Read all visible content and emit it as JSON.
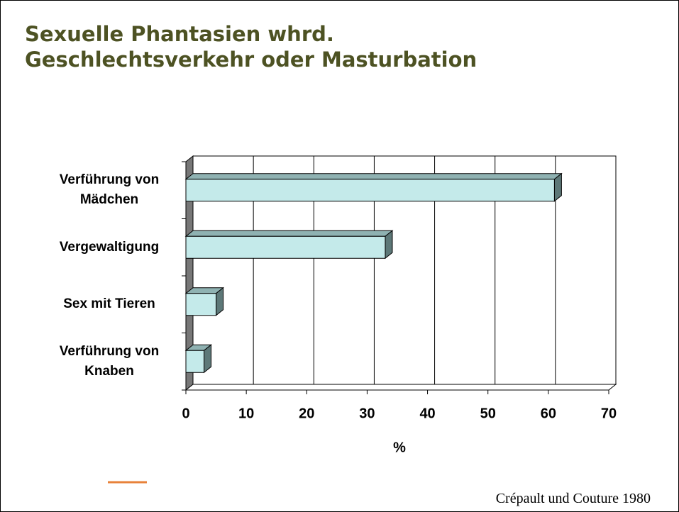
{
  "chart_data": {
    "type": "bar3d_horizontal",
    "title": "Sexuelle Phantasien whrd. Geschlechtsverkehr oder Masturbation",
    "categories": [
      "Verführung von Mädchen",
      "Vergewaltigung",
      "Sex mit Tieren",
      "Verführung von Knaben"
    ],
    "values": [
      61,
      33,
      5,
      3
    ],
    "color": "#c4eaea",
    "xlim": [
      0,
      70
    ],
    "xticks": [
      0,
      10,
      20,
      30,
      40,
      50,
      60,
      70
    ],
    "xlabel": "%",
    "grid": true,
    "source": "Crépault und Couture 1980"
  }
}
